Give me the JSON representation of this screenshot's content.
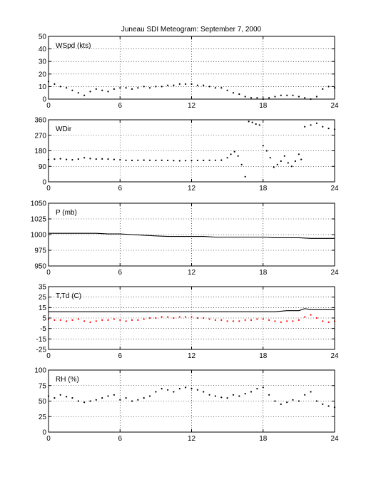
{
  "title": "Juneau SDI Meteogram: September  7, 2000",
  "chart_data": [
    {
      "type": "scatter",
      "label": "WSpd (kts)",
      "ylim": [
        0,
        50
      ],
      "yticks": [
        0,
        10,
        20,
        30,
        40,
        50
      ],
      "xlim": [
        0,
        24
      ],
      "xticks": [
        0,
        6,
        12,
        18,
        24
      ],
      "grid": true,
      "series": [
        {
          "color": "#000000",
          "marker": "dot",
          "x": [
            0,
            0.5,
            1,
            1.5,
            2,
            2.5,
            3,
            3.5,
            4,
            4.5,
            5,
            5.5,
            6,
            6.5,
            7,
            7.5,
            8,
            8.5,
            9,
            9.5,
            10,
            10.5,
            11,
            11.5,
            12,
            12.5,
            13,
            13.5,
            14,
            14.5,
            15,
            15.5,
            16,
            16.5,
            17,
            17.5,
            18,
            18.5,
            19,
            19.5,
            20,
            20.5,
            21,
            21.5,
            22,
            22.5,
            23,
            23.5,
            24
          ],
          "y": [
            14,
            12,
            10,
            9,
            7,
            5,
            3,
            6,
            8,
            7,
            6,
            8,
            9,
            9,
            8,
            9,
            10,
            9,
            10,
            10,
            11,
            11,
            12,
            12,
            12,
            11,
            11,
            10,
            9,
            9,
            7,
            5,
            4,
            2,
            1,
            1,
            0,
            1,
            2,
            3,
            3,
            3,
            2,
            1,
            0,
            2,
            8,
            10,
            9
          ]
        }
      ]
    },
    {
      "type": "scatter",
      "label": "WDir",
      "ylim": [
        0,
        360
      ],
      "yticks": [
        0,
        90,
        180,
        270,
        360
      ],
      "xlim": [
        0,
        24
      ],
      "xticks": [
        0,
        6,
        12,
        18,
        24
      ],
      "grid": true,
      "series": [
        {
          "color": "#000000",
          "marker": "dot",
          "x": [
            0,
            0.5,
            1,
            1.5,
            2,
            2.5,
            3,
            3.5,
            4,
            4.5,
            5,
            5.5,
            6,
            6.5,
            7,
            7.5,
            8,
            8.5,
            9,
            9.5,
            10,
            10.5,
            11,
            11.5,
            12,
            12.5,
            13,
            13.5,
            14,
            14.5,
            15,
            15.3,
            15.6,
            15.9,
            16.2,
            16.5,
            16.8,
            17.1,
            17.4,
            17.7,
            18,
            18.3,
            18.6,
            18.9,
            19.2,
            19.5,
            19.8,
            20.1,
            20.4,
            20.7,
            21,
            21.2,
            21.5,
            22,
            22.5,
            23,
            23.5,
            24
          ],
          "y": [
            130,
            132,
            134,
            130,
            128,
            132,
            140,
            135,
            132,
            133,
            132,
            130,
            128,
            125,
            124,
            125,
            126,
            125,
            124,
            125,
            124,
            123,
            122,
            123,
            123,
            124,
            124,
            125,
            125,
            126,
            140,
            160,
            175,
            150,
            100,
            30,
            350,
            345,
            335,
            330,
            210,
            180,
            140,
            85,
            100,
            120,
            150,
            110,
            90,
            120,
            160,
            130,
            320,
            330,
            340,
            320,
            310,
            305
          ]
        }
      ]
    },
    {
      "type": "line",
      "label": "P (mb)",
      "ylim": [
        950,
        1050
      ],
      "yticks": [
        950,
        975,
        1000,
        1025,
        1050
      ],
      "xlim": [
        0,
        24
      ],
      "xticks": [
        0,
        6,
        12,
        18,
        24
      ],
      "grid": true,
      "series": [
        {
          "color": "#000000",
          "x": [
            0,
            1,
            2,
            3,
            4,
            5,
            6,
            7,
            8,
            9,
            10,
            11,
            12,
            13,
            14,
            15,
            16,
            17,
            18,
            19,
            20,
            21,
            22,
            23,
            24
          ],
          "y": [
            1002,
            1002,
            1002,
            1002,
            1002,
            1001,
            1001,
            1000,
            999,
            998,
            997,
            997,
            997,
            997,
            996,
            996,
            996,
            996,
            996,
            995,
            995,
            995,
            994,
            994,
            994
          ]
        }
      ]
    },
    {
      "type": "line",
      "label": "T,Td (C)",
      "ylim": [
        -25,
        35
      ],
      "yticks": [
        -25,
        -15,
        -5,
        5,
        15,
        25,
        35
      ],
      "xlim": [
        0,
        24
      ],
      "xticks": [
        0,
        6,
        12,
        18,
        24
      ],
      "grid": true,
      "series": [
        {
          "color": "#000000",
          "x": [
            0,
            1,
            2,
            3,
            4,
            5,
            6,
            7,
            8,
            9,
            10,
            11,
            12,
            13,
            14,
            15,
            16,
            17,
            18,
            19,
            20,
            21,
            21.5,
            22,
            23,
            24
          ],
          "y": [
            11,
            11,
            11,
            11,
            11,
            11,
            11,
            11,
            11,
            11,
            11,
            11,
            11,
            11,
            11,
            11,
            11,
            11,
            11,
            11,
            12,
            12,
            14,
            13,
            13,
            13
          ]
        },
        {
          "color": "#ff0000",
          "marker": "dot",
          "x": [
            0,
            0.5,
            1,
            1.5,
            2,
            2.5,
            3,
            3.5,
            4,
            4.5,
            5,
            5.5,
            6,
            6.5,
            7,
            7.5,
            8,
            8.5,
            9,
            9.5,
            10,
            10.5,
            11,
            11.5,
            12,
            12.5,
            13,
            13.5,
            14,
            14.5,
            15,
            15.5,
            16,
            16.5,
            17,
            17.5,
            18,
            18.5,
            19,
            19.5,
            20,
            20.5,
            21,
            21.5,
            22,
            22.5,
            23,
            23.5,
            24
          ],
          "y": [
            4,
            3,
            3,
            2,
            3,
            4,
            2,
            1,
            2,
            3,
            3,
            4,
            3,
            2,
            3,
            3,
            4,
            5,
            5,
            6,
            6,
            5,
            6,
            6,
            6,
            5,
            5,
            4,
            3,
            3,
            2,
            2,
            2,
            3,
            3,
            4,
            4,
            3,
            2,
            1,
            2,
            2,
            3,
            6,
            8,
            5,
            2,
            1,
            2
          ]
        }
      ]
    },
    {
      "type": "scatter",
      "label": "RH (%)",
      "ylim": [
        0,
        100
      ],
      "yticks": [
        0,
        25,
        50,
        75,
        100
      ],
      "xlim": [
        0,
        24
      ],
      "xticks": [
        0,
        6,
        12,
        18,
        24
      ],
      "grid": true,
      "series": [
        {
          "color": "#000000",
          "marker": "dot",
          "x": [
            0,
            0.5,
            1,
            1.5,
            2,
            2.5,
            3,
            3.5,
            4,
            4.5,
            5,
            5.5,
            6,
            6.5,
            7,
            7.5,
            8,
            8.5,
            9,
            9.5,
            10,
            10.5,
            11,
            11.5,
            12,
            12.5,
            13,
            13.5,
            14,
            14.5,
            15,
            15.5,
            16,
            16.5,
            17,
            17.5,
            18,
            18.5,
            19,
            19.5,
            20,
            20.5,
            21,
            21.5,
            22,
            22.5,
            23,
            23.5,
            24
          ],
          "y": [
            58,
            55,
            60,
            57,
            55,
            50,
            48,
            50,
            52,
            55,
            58,
            60,
            52,
            55,
            50,
            52,
            55,
            58,
            65,
            70,
            68,
            65,
            70,
            72,
            70,
            68,
            65,
            60,
            58,
            56,
            55,
            60,
            58,
            62,
            65,
            70,
            72,
            60,
            50,
            45,
            48,
            52,
            50,
            60,
            65,
            50,
            45,
            42,
            40
          ]
        }
      ]
    }
  ]
}
